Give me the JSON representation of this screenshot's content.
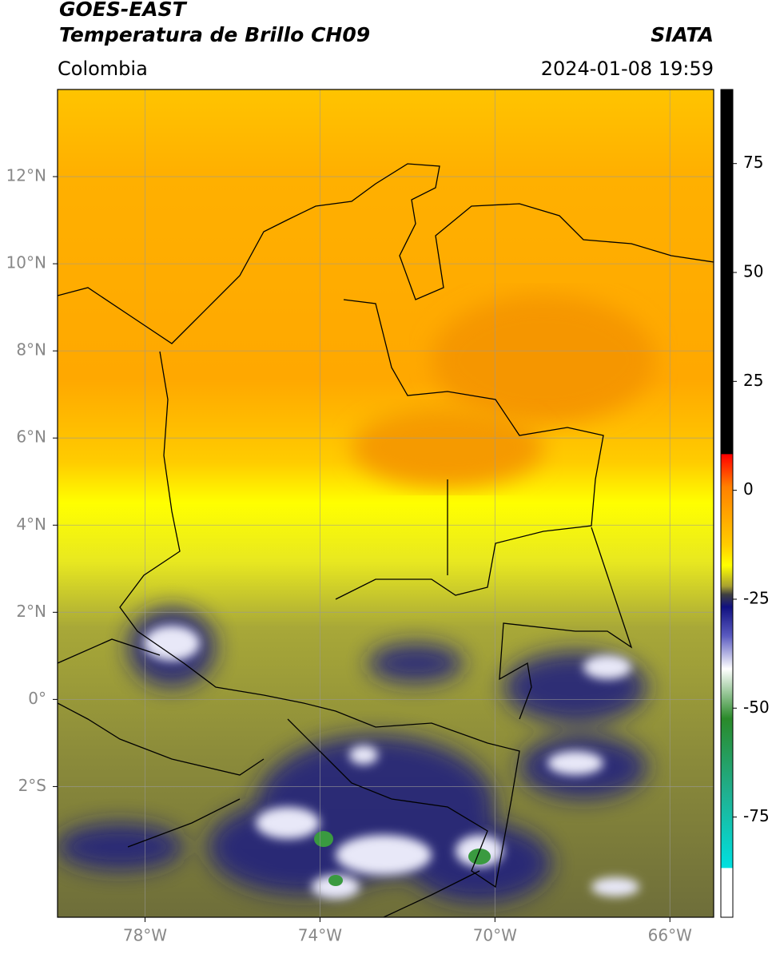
{
  "header": {
    "title": "GOES-EAST",
    "subtitle": "Temperatura de Brillo CH09",
    "source": "SIATA",
    "region": "Colombia",
    "datetime": "2024-01-08 19:59"
  },
  "map": {
    "xlim": [
      -80,
      -65
    ],
    "ylim": [
      -5,
      14
    ],
    "xticks": [
      {
        "value": -78,
        "label": "78°W"
      },
      {
        "value": -74,
        "label": "74°W"
      },
      {
        "value": -70,
        "label": "70°W"
      },
      {
        "value": -66,
        "label": "66°W"
      }
    ],
    "yticks": [
      {
        "value": 12,
        "label": "12°N"
      },
      {
        "value": 10,
        "label": "10°N"
      },
      {
        "value": 8,
        "label": "8°N"
      },
      {
        "value": 6,
        "label": "6°N"
      },
      {
        "value": 4,
        "label": "4°N"
      },
      {
        "value": 2,
        "label": "2°N"
      },
      {
        "value": 0,
        "label": "0°"
      },
      {
        "value": -2,
        "label": "2°S"
      }
    ],
    "grid": true
  },
  "colorbar": {
    "lim": [
      -98,
      92
    ],
    "ticks": [
      75,
      50,
      25,
      0,
      -25,
      -50,
      -75
    ]
  }
}
